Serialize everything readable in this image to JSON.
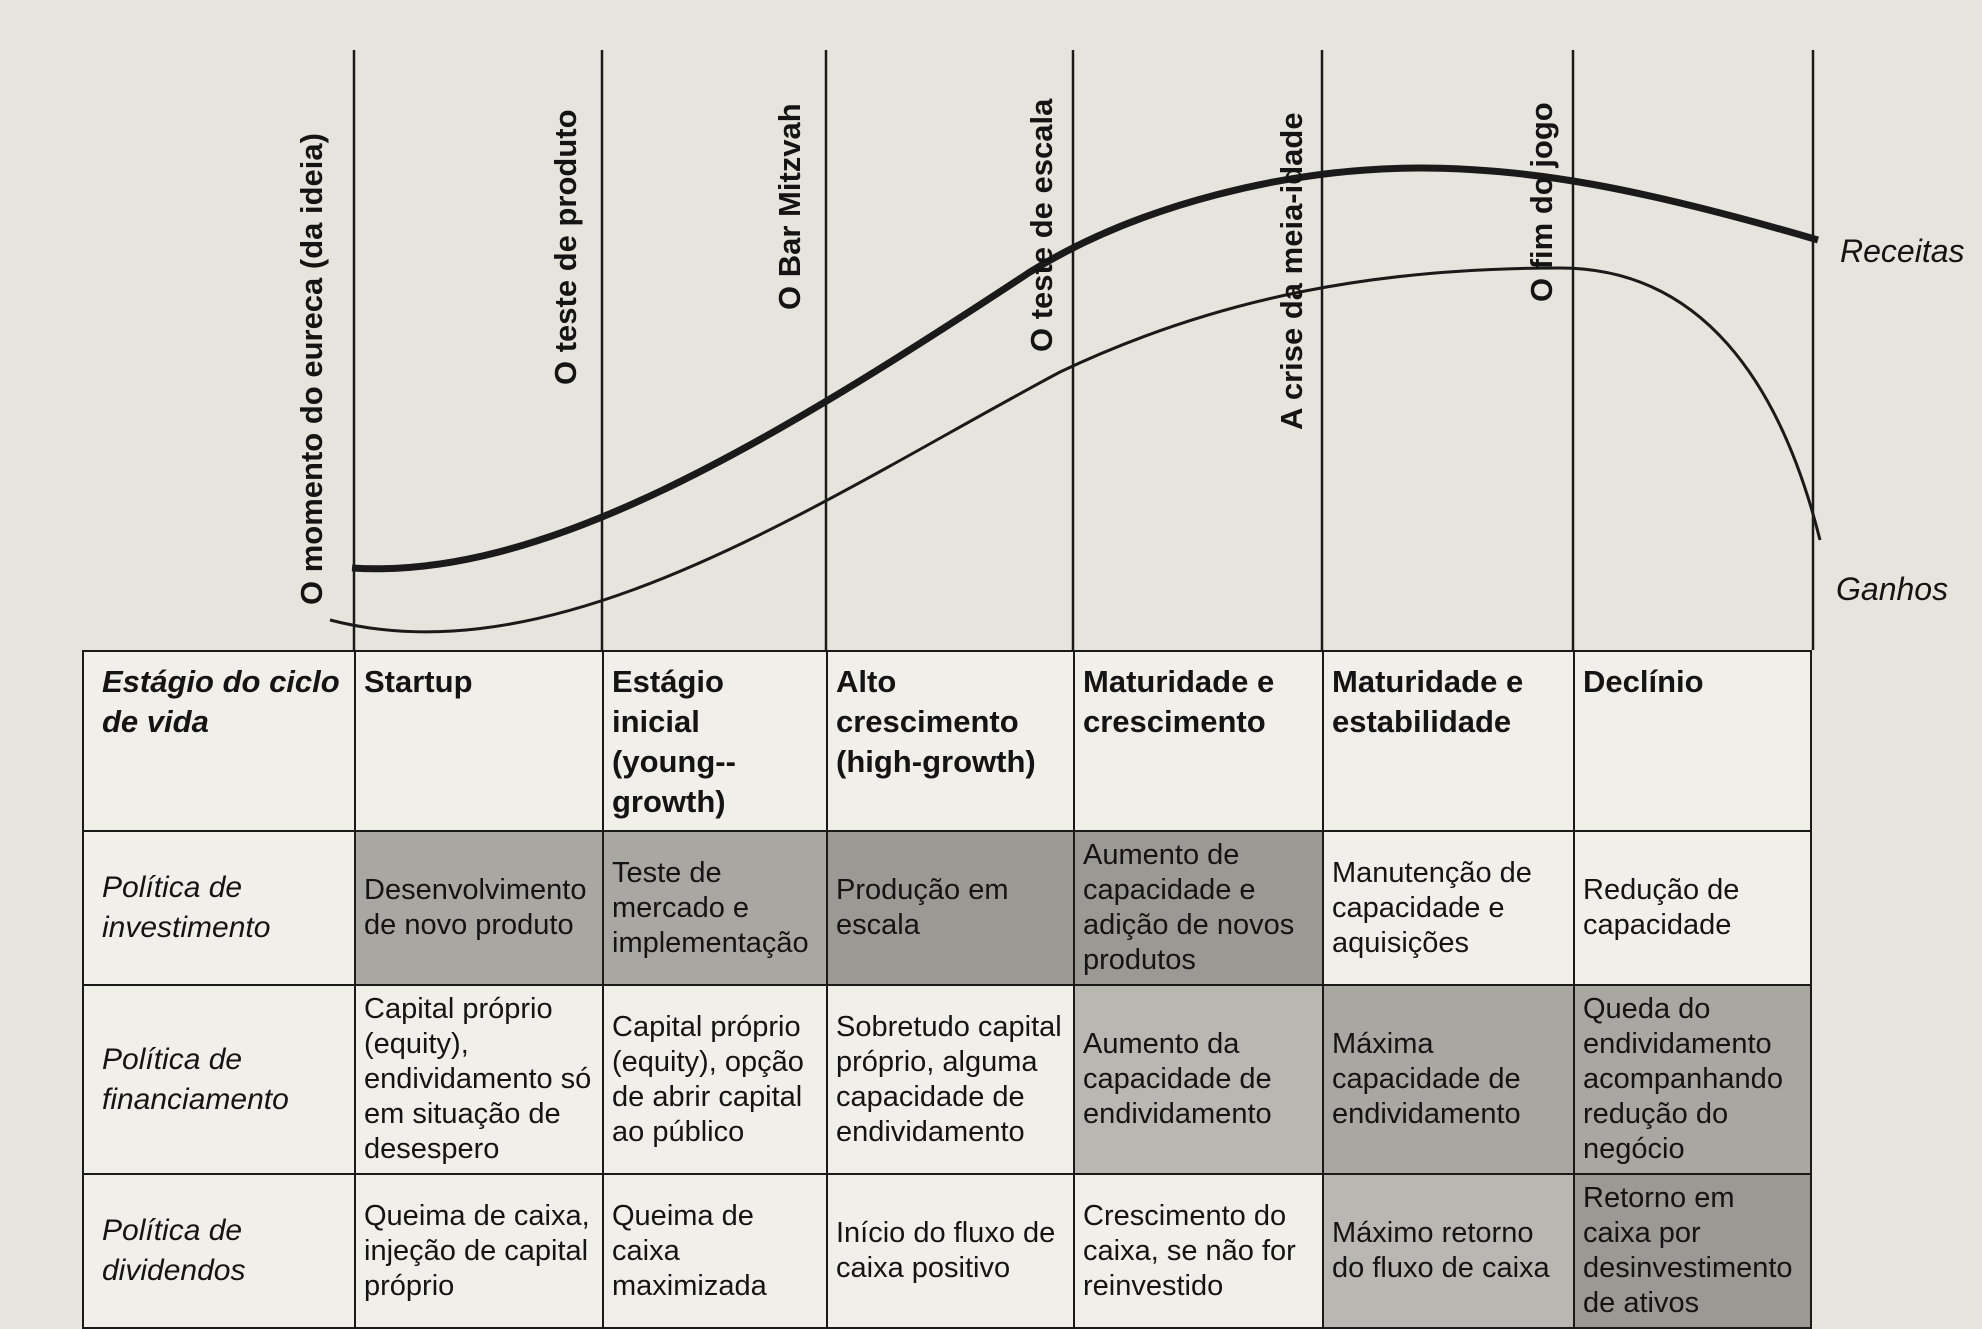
{
  "milestones": [
    "O momento do eureca (da ideia)",
    "O teste de produto",
    "O Bar Mitzvah",
    "O teste de escala",
    "A crise da meia-idade",
    "O fim do jogo"
  ],
  "curves": {
    "revenue_label": "Receitas",
    "earnings_label": "Ganhos"
  },
  "table": {
    "headers": [
      "Estágio do ciclo de vida",
      "Startup",
      "Estágio inicial (young--growth)",
      "Alto crescimento (high-growth)",
      "Maturidade e crescimento",
      "Maturidade e estabilidade",
      "Declínio"
    ],
    "rows": [
      {
        "label": "Política de investimento",
        "cells": [
          "Desenvolvimento de novo produto",
          "Teste de mercado e implementação",
          "Produção em escala",
          "Aumento de capacidade e adição de novos produtos",
          "Manutenção de capacidade e aquisições",
          "Redução de capacidade"
        ]
      },
      {
        "label": "Política de financiamento",
        "cells": [
          "Capital próprio (equity), endividamento só em situação de desespero",
          "Capital próprio (equity), opção de abrir capital ao público",
          "Sobretudo capital próprio, alguma capacidade de endividamento",
          "Aumento da capacidade de endividamento",
          "Máxima capacidade de endividamento",
          "Queda do endividamento acompanhando redução do negócio"
        ]
      },
      {
        "label": "Política de dividendos",
        "cells": [
          "Queima de caixa, injeção de capital próprio",
          "Queima de caixa maximizada",
          "Início do fluxo de caixa positivo",
          "Crescimento do caixa, se não for reinvestido",
          "Máximo retorno do fluxo de caixa",
          "Retorno em caixa por desinvestimento de ativos"
        ]
      }
    ]
  }
}
